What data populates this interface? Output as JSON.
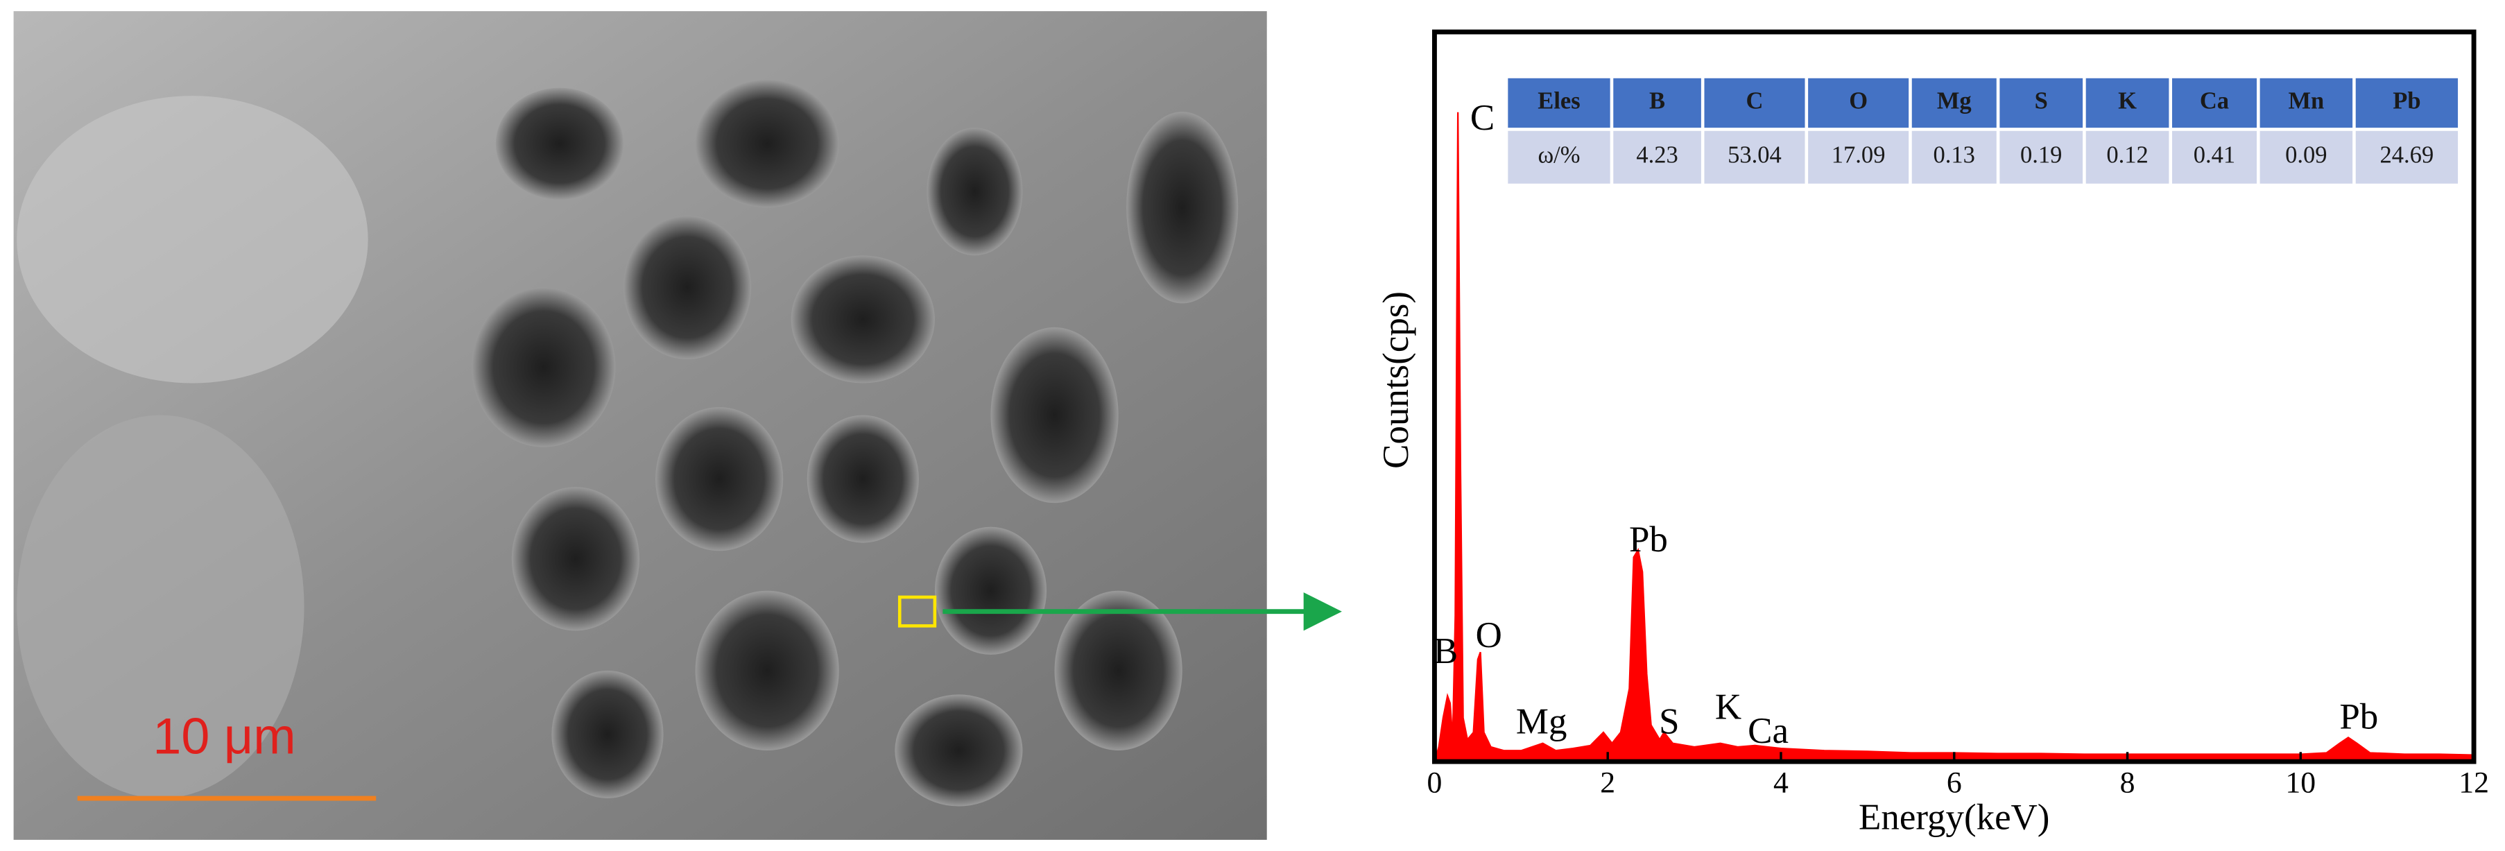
{
  "sem_image": {
    "scale_bar": "10 μm"
  },
  "chart_data": {
    "type": "line",
    "xlabel": "Energy(keV)",
    "ylabel": "Counts(cps)",
    "xlim": [
      0,
      12
    ],
    "xticks": [
      0,
      2,
      4,
      6,
      8,
      10,
      12
    ],
    "ylim": [
      0,
      100
    ],
    "color": "#ff0000",
    "x": [
      0,
      0.05,
      0.1,
      0.15,
      0.18,
      0.21,
      0.24,
      0.27,
      0.3,
      0.33,
      0.38,
      0.45,
      0.5,
      0.53,
      0.57,
      0.65,
      0.8,
      1.0,
      1.25,
      1.4,
      1.6,
      1.8,
      1.95,
      2.05,
      2.15,
      2.25,
      2.3,
      2.35,
      2.4,
      2.45,
      2.5,
      2.6,
      2.65,
      2.75,
      3.0,
      3.3,
      3.5,
      3.7,
      4.0,
      4.5,
      5.0,
      5.5,
      6.0,
      6.5,
      7.0,
      7.5,
      8.0,
      8.5,
      9.0,
      9.5,
      10.0,
      10.3,
      10.45,
      10.55,
      10.65,
      10.8,
      11.2,
      11.6,
      12
    ],
    "values": [
      0,
      2,
      6,
      9,
      8,
      3,
      20,
      89,
      40,
      6,
      3,
      4,
      14,
      15,
      4,
      2,
      1.5,
      1.5,
      2.5,
      1.5,
      1.8,
      2.2,
      4,
      2.5,
      4,
      10,
      28,
      29,
      26,
      12,
      5,
      3,
      4,
      2.5,
      2,
      2.5,
      2,
      2.2,
      1.8,
      1.5,
      1.4,
      1.2,
      1.2,
      1.1,
      1.1,
      1,
      1,
      1,
      1,
      1,
      1,
      1.2,
      2.5,
      3.3,
      2.5,
      1.2,
      1,
      1,
      0.9
    ],
    "annotations": [
      "C",
      "B",
      "O",
      "Mg",
      "Pb",
      "S",
      "K",
      "Ca",
      "Pb"
    ],
    "table": {
      "header": [
        "Eles",
        "B",
        "C",
        "O",
        "Mg",
        "S",
        "K",
        "Ca",
        "Mn",
        "Pb"
      ],
      "rows": [
        [
          "ω/%",
          4.23,
          53.04,
          17.09,
          0.13,
          0.19,
          0.12,
          0.41,
          0.09,
          24.69
        ]
      ]
    }
  }
}
